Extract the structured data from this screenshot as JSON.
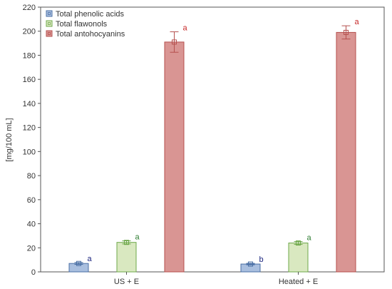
{
  "chart_data": {
    "type": "bar",
    "categories": [
      "US + E",
      "Heated + E"
    ],
    "ylabel": "[mg/100 mL]",
    "xlabel": "",
    "ylim": [
      0,
      220
    ],
    "ytick_step": 20,
    "grid": false,
    "legend_position": "top-left",
    "series": [
      {
        "name": "Total phenolic acids",
        "values": [
          7,
          6.5
        ],
        "errors": [
          0.8,
          0.6
        ],
        "labels": [
          "a",
          "b"
        ],
        "fill": "#a9bfdf",
        "stroke": "#4a6fa5",
        "label_color": "#1a237e"
      },
      {
        "name": "Total flawonols",
        "values": [
          24.5,
          24
        ],
        "errors": [
          1.3,
          1.2
        ],
        "labels": [
          "a",
          "a"
        ],
        "fill": "#d9e8c0",
        "stroke": "#6ea84a",
        "label_color": "#2e7d32"
      },
      {
        "name": "Total antohocyanins",
        "values": [
          191,
          199
        ],
        "errors": [
          8.5,
          5.5
        ],
        "labels": [
          "a",
          "a"
        ],
        "fill": "#d99593",
        "stroke": "#b5504e",
        "label_color": "#c62828"
      }
    ]
  }
}
